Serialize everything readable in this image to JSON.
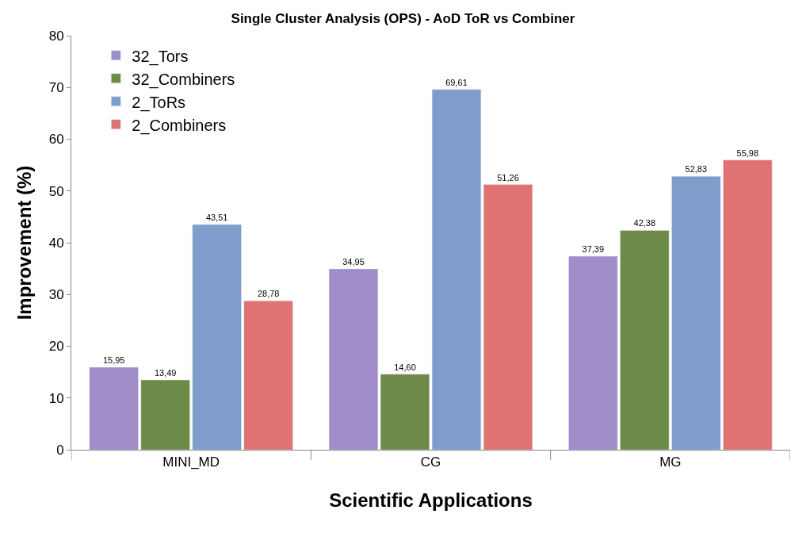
{
  "chart_data": {
    "type": "bar",
    "title": "Single Cluster Analysis (OPS) - AoD ToR vs Combiner",
    "xlabel": "Scientific Applications",
    "ylabel": "Improvement (%)",
    "categories": [
      "MINI_MD",
      "CG",
      "MG"
    ],
    "series": [
      {
        "name": "32_Tors",
        "color": "#a08cc8",
        "values": [
          15.95,
          34.95,
          37.39
        ],
        "value_labels": [
          "15,95",
          "34,95",
          "37,39"
        ]
      },
      {
        "name": "32_Combiners",
        "color": "#6e8a48",
        "values": [
          13.49,
          14.6,
          42.38
        ],
        "value_labels": [
          "13,49",
          "14,60",
          "42,38"
        ]
      },
      {
        "name": "2_ToRs",
        "color": "#7e9ccc",
        "values": [
          43.51,
          69.61,
          52.83
        ],
        "value_labels": [
          "43,51",
          "69,61",
          "52,83"
        ]
      },
      {
        "name": "2_Combiners",
        "color": "#e07272",
        "values": [
          28.78,
          51.26,
          55.98
        ],
        "value_labels": [
          "28,78",
          "51,26",
          "55,98"
        ]
      }
    ],
    "ylim": [
      0,
      80
    ],
    "yticks": [
      0,
      10,
      20,
      30,
      40,
      50,
      60,
      70,
      80
    ],
    "legend": "top left"
  }
}
